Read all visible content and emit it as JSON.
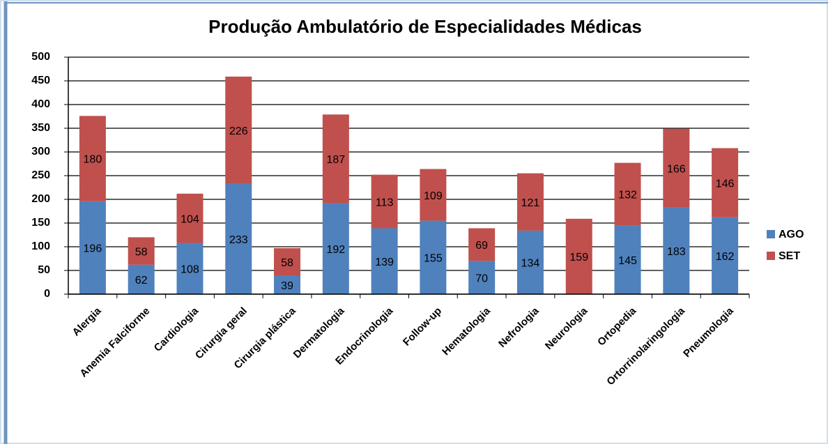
{
  "chart_data": {
    "type": "stacked-bar",
    "title": "Produção Ambulatório de Especialidades Médicas",
    "categories": [
      "Alergia",
      "Anemia Falciforme",
      "Cardiologia",
      "Cirurgia geral",
      "Cirurgia plástica",
      "Dermatologia",
      "Endocrinologia",
      "Follow-up",
      "Hematologia",
      "Nefrologia",
      "Neurologia",
      "Ortopedia",
      "Ortorrinolaringologia",
      "Pneumologia"
    ],
    "series": [
      {
        "name": "AGO",
        "color": "#4f81bd",
        "values": [
          196,
          62,
          108,
          233,
          39,
          192,
          139,
          155,
          70,
          134,
          null,
          145,
          183,
          162
        ]
      },
      {
        "name": "SET",
        "color": "#c0504d",
        "values": [
          180,
          58,
          104,
          226,
          58,
          187,
          113,
          109,
          69,
          121,
          159,
          132,
          166,
          146
        ]
      }
    ],
    "ylim": [
      0,
      500
    ],
    "yticks": [
      0,
      50,
      100,
      150,
      200,
      250,
      300,
      350,
      400,
      450,
      500
    ],
    "grid": true,
    "legend": "right"
  }
}
